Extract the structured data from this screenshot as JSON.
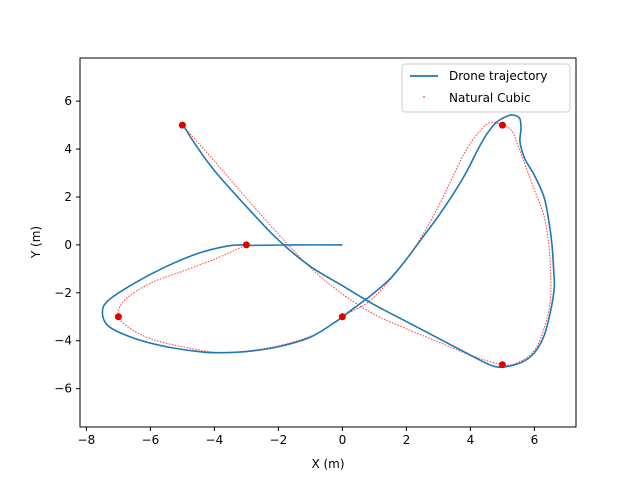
{
  "chart_data": {
    "type": "line",
    "xlabel": "X (m)",
    "ylabel": "Y (m)",
    "xlim": [
      -8.2,
      7.3
    ],
    "ylim": [
      -7.6,
      7.8
    ],
    "xticks": [
      -8,
      -6,
      -4,
      -2,
      0,
      2,
      4,
      6
    ],
    "yticks": [
      -6,
      -4,
      -2,
      0,
      2,
      4,
      6
    ],
    "grid": false,
    "legend_position": "top-right",
    "colors": {
      "drone": "#1f77b4",
      "spline": "#ff0000",
      "waypoint": "#e00000"
    },
    "series": [
      {
        "name": "Drone trajectory",
        "style": "line",
        "points": [
          [
            0.0,
            0.0
          ],
          [
            -1.5,
            0.0
          ],
          [
            -2.8,
            -0.02
          ],
          [
            -3.1,
            0.0
          ],
          [
            -3.6,
            -0.05
          ],
          [
            -4.5,
            -0.35
          ],
          [
            -5.5,
            -0.9
          ],
          [
            -6.5,
            -1.6
          ],
          [
            -7.3,
            -2.3
          ],
          [
            -7.5,
            -2.8
          ],
          [
            -7.3,
            -3.4
          ],
          [
            -6.5,
            -3.9
          ],
          [
            -5.5,
            -4.25
          ],
          [
            -4.5,
            -4.45
          ],
          [
            -4.0,
            -4.5
          ],
          [
            -3.0,
            -4.45
          ],
          [
            -2.0,
            -4.25
          ],
          [
            -1.0,
            -3.85
          ],
          [
            -0.2,
            -3.2
          ],
          [
            0.0,
            -3.0
          ],
          [
            0.4,
            -2.6
          ],
          [
            0.9,
            -2.1
          ],
          [
            1.5,
            -1.4
          ],
          [
            2.0,
            -0.6
          ],
          [
            2.5,
            0.3
          ],
          [
            3.0,
            1.2
          ],
          [
            3.5,
            2.2
          ],
          [
            3.9,
            3.1
          ],
          [
            4.2,
            3.9
          ],
          [
            4.5,
            4.6
          ],
          [
            4.8,
            5.1
          ],
          [
            5.2,
            5.4
          ],
          [
            5.4,
            5.4
          ],
          [
            5.55,
            5.25
          ],
          [
            5.58,
            4.8
          ],
          [
            5.55,
            4.3
          ],
          [
            5.7,
            3.6
          ],
          [
            6.0,
            2.9
          ],
          [
            6.3,
            2.0
          ],
          [
            6.45,
            1.0
          ],
          [
            6.55,
            0.0
          ],
          [
            6.6,
            -1.0
          ],
          [
            6.62,
            -1.8
          ],
          [
            6.5,
            -2.8
          ],
          [
            6.3,
            -3.8
          ],
          [
            6.0,
            -4.5
          ],
          [
            5.6,
            -4.9
          ],
          [
            5.0,
            -5.1
          ],
          [
            4.6,
            -5.0
          ],
          [
            4.0,
            -4.6
          ],
          [
            3.0,
            -3.9
          ],
          [
            2.0,
            -3.2
          ],
          [
            1.0,
            -2.5
          ],
          [
            0.0,
            -1.7
          ],
          [
            -1.0,
            -0.9
          ],
          [
            -2.0,
            0.2
          ],
          [
            -3.0,
            1.6
          ],
          [
            -4.0,
            3.1
          ],
          [
            -4.6,
            4.2
          ],
          [
            -5.0,
            5.05
          ]
        ]
      },
      {
        "name": "Natural Cubic",
        "style": "dotted",
        "points": [
          [
            -5.0,
            5.0
          ],
          [
            -4.0,
            3.5
          ],
          [
            -3.0,
            1.95
          ],
          [
            -2.0,
            0.45
          ],
          [
            -1.0,
            -0.95
          ],
          [
            0.0,
            -2.05
          ],
          [
            1.0,
            -2.9
          ],
          [
            2.0,
            -3.5
          ],
          [
            3.0,
            -4.05
          ],
          [
            4.0,
            -4.6
          ],
          [
            5.0,
            -5.0
          ],
          [
            5.5,
            -4.9
          ],
          [
            6.0,
            -4.4
          ],
          [
            6.3,
            -3.5
          ],
          [
            6.5,
            -2.3
          ],
          [
            6.5,
            -1.0
          ],
          [
            6.45,
            0.0
          ],
          [
            6.3,
            1.2
          ],
          [
            6.0,
            2.3
          ],
          [
            5.75,
            3.2
          ],
          [
            5.5,
            4.1
          ],
          [
            5.3,
            4.75
          ],
          [
            5.0,
            5.0
          ],
          [
            4.6,
            5.1
          ],
          [
            4.2,
            4.6
          ],
          [
            3.8,
            3.8
          ],
          [
            3.4,
            2.7
          ],
          [
            3.0,
            1.6
          ],
          [
            2.5,
            0.4
          ],
          [
            2.0,
            -0.6
          ],
          [
            1.4,
            -1.6
          ],
          [
            0.8,
            -2.4
          ],
          [
            0.4,
            -2.7
          ],
          [
            0.0,
            -3.0
          ],
          [
            -0.8,
            -3.7
          ],
          [
            -1.8,
            -4.15
          ],
          [
            -2.8,
            -4.4
          ],
          [
            -3.8,
            -4.5
          ],
          [
            -4.8,
            -4.3
          ],
          [
            -5.8,
            -4.0
          ],
          [
            -6.5,
            -3.6
          ],
          [
            -7.0,
            -3.0
          ],
          [
            -6.8,
            -2.3
          ],
          [
            -6.0,
            -1.6
          ],
          [
            -5.0,
            -1.1
          ],
          [
            -4.0,
            -0.6
          ],
          [
            -3.0,
            0.0
          ]
        ]
      }
    ],
    "waypoints": [
      [
        -5,
        5
      ],
      [
        -3,
        0
      ],
      [
        -7,
        -3
      ],
      [
        0,
        -3
      ],
      [
        5,
        5
      ],
      [
        5,
        -5
      ]
    ]
  }
}
